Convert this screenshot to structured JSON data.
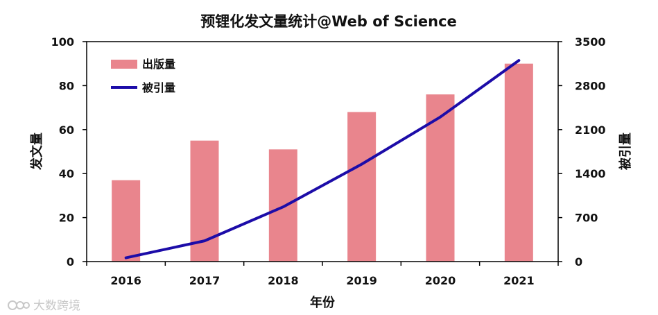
{
  "chart_data": {
    "type": "bar+line",
    "title": "预锂化发文量统计@Web of Science",
    "categories": [
      "2016",
      "2017",
      "2018",
      "2019",
      "2020",
      "2021"
    ],
    "xlabel": "年份",
    "ylabel_left": "发文量",
    "ylabel_right": "被引量",
    "ylim_left": [
      0,
      100
    ],
    "ylim_right": [
      0,
      3500
    ],
    "yticks_left": [
      0,
      20,
      40,
      60,
      80,
      100
    ],
    "yticks_right": [
      0,
      700,
      1400,
      2100,
      2800,
      3500
    ],
    "series": [
      {
        "name": "出版量",
        "type": "bar",
        "axis": "left",
        "color": "#e9858d",
        "values": [
          37,
          55,
          51,
          68,
          76,
          90
        ]
      },
      {
        "name": "被引量",
        "type": "line",
        "axis": "right",
        "color": "#1c0ca8",
        "values": [
          60,
          330,
          870,
          1550,
          2300,
          3200
        ]
      }
    ],
    "legend_position": "top-left",
    "grid": false
  },
  "watermark": {
    "text": "大数跨境",
    "icon": "logo-icon"
  }
}
